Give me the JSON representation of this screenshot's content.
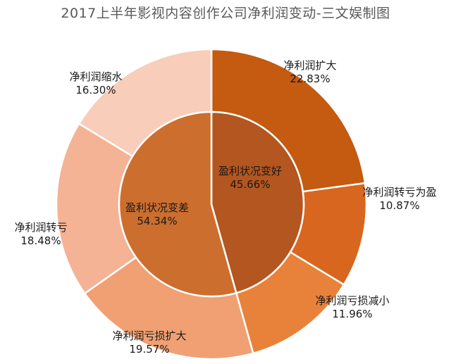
{
  "chart_data": {
    "type": "pie",
    "variant": "nested-donut",
    "title": "2017上半年影视内容创作公司净利润变动-三文娱制图",
    "inner": [
      {
        "name": "盈利状况变好",
        "value": 45.66,
        "value_label": "45.66%",
        "color": "#B3561F"
      },
      {
        "name": "盈利状况变差",
        "value": 54.34,
        "value_label": "54.34%",
        "color": "#CC6E2E"
      }
    ],
    "outer": [
      {
        "name": "净利润扩大",
        "value": 22.83,
        "value_label": "22.83%",
        "color": "#C55A11"
      },
      {
        "name": "净利润转亏为盈",
        "value": 10.87,
        "value_label": "10.87%",
        "color": "#D9661E"
      },
      {
        "name": "净利润亏损减小",
        "value": 11.96,
        "value_label": "11.96%",
        "color": "#E8823A"
      },
      {
        "name": "净利润亏损扩大",
        "value": 19.57,
        "value_label": "19.57%",
        "color": "#F0A072"
      },
      {
        "name": "净利润转亏",
        "value": 18.48,
        "value_label": "18.48%",
        "color": "#F4B395"
      },
      {
        "name": "净利润缩水",
        "value": 16.3,
        "value_label": "16.30%",
        "color": "#F8CDBA"
      }
    ],
    "start_angle_deg": 0,
    "direction": "clockwise",
    "legend": "none"
  }
}
